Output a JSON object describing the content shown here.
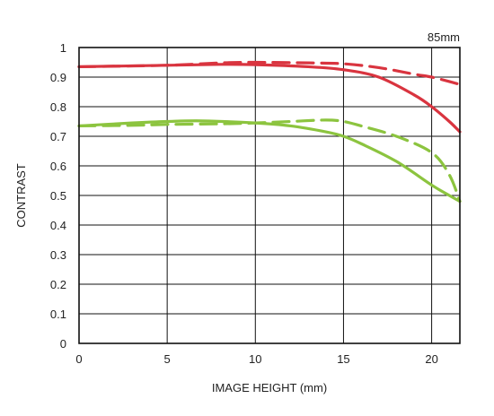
{
  "chart_data": {
    "type": "line",
    "corner_label": "85mm",
    "xlabel": "IMAGE HEIGHT (mm)",
    "ylabel": "CONTRAST",
    "xlim": [
      0,
      21.6
    ],
    "ylim": [
      0,
      1
    ],
    "x_ticks": [
      0,
      5,
      10,
      15,
      20
    ],
    "x_tick_labels": [
      "0",
      "5",
      "10",
      "15",
      "20"
    ],
    "y_ticks": [
      0,
      0.1,
      0.2,
      0.3,
      0.4,
      0.5,
      0.6,
      0.7,
      0.8,
      0.9,
      1
    ],
    "y_tick_labels": [
      "0",
      "0.1",
      "0.2",
      "0.3",
      "0.4",
      "0.5",
      "0.6",
      "0.7",
      "0.8",
      "0.9",
      "1"
    ],
    "grid": true,
    "series": [
      {
        "color": "#d9343f",
        "dash": "solid",
        "points": [
          [
            0,
            0.935
          ],
          [
            5,
            0.94
          ],
          [
            8,
            0.943
          ],
          [
            10,
            0.942
          ],
          [
            13,
            0.935
          ],
          [
            15,
            0.925
          ],
          [
            17,
            0.9
          ],
          [
            19,
            0.84
          ],
          [
            20,
            0.8
          ],
          [
            21,
            0.75
          ],
          [
            21.6,
            0.715
          ]
        ]
      },
      {
        "color": "#d9343f",
        "dash": "dashed",
        "points": [
          [
            0,
            0.935
          ],
          [
            5,
            0.94
          ],
          [
            8,
            0.948
          ],
          [
            10,
            0.95
          ],
          [
            13,
            0.948
          ],
          [
            15,
            0.945
          ],
          [
            17,
            0.932
          ],
          [
            19,
            0.91
          ],
          [
            20,
            0.9
          ],
          [
            21,
            0.885
          ],
          [
            21.6,
            0.875
          ]
        ]
      },
      {
        "color": "#8cc43f",
        "dash": "solid",
        "points": [
          [
            0,
            0.735
          ],
          [
            3,
            0.745
          ],
          [
            5,
            0.75
          ],
          [
            7,
            0.752
          ],
          [
            10,
            0.745
          ],
          [
            12,
            0.735
          ],
          [
            14,
            0.715
          ],
          [
            15,
            0.7
          ],
          [
            16,
            0.675
          ],
          [
            18,
            0.615
          ],
          [
            20,
            0.535
          ],
          [
            21,
            0.5
          ],
          [
            21.6,
            0.48
          ]
        ]
      },
      {
        "color": "#8cc43f",
        "dash": "dashed",
        "points": [
          [
            0,
            0.735
          ],
          [
            3,
            0.737
          ],
          [
            5,
            0.74
          ],
          [
            8,
            0.742
          ],
          [
            10,
            0.745
          ],
          [
            12,
            0.75
          ],
          [
            14,
            0.755
          ],
          [
            15,
            0.75
          ],
          [
            16,
            0.735
          ],
          [
            18,
            0.7
          ],
          [
            20,
            0.645
          ],
          [
            21,
            0.57
          ],
          [
            21.6,
            0.48
          ]
        ]
      }
    ]
  }
}
